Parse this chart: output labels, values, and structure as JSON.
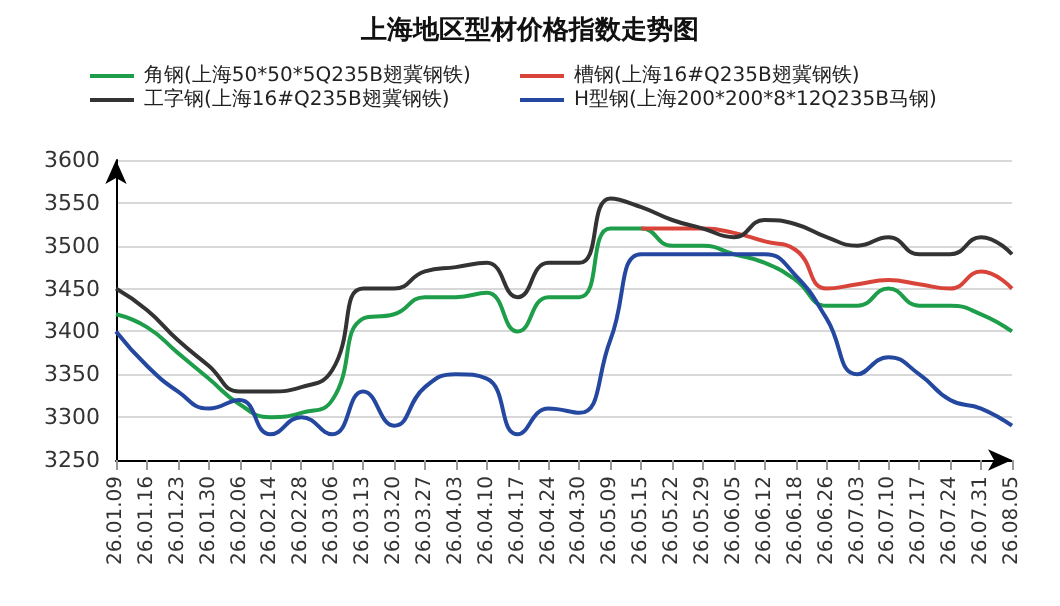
{
  "chart_data": {
    "type": "line",
    "title": "上海地区型材价格指数走势图",
    "categories": [
      "26.01.09",
      "26.01.16",
      "26.01.23",
      "26.01.30",
      "26.02.06",
      "26.02.14",
      "26.02.28",
      "26.03.06",
      "26.03.13",
      "26.03.20",
      "26.03.27",
      "26.04.03",
      "26.04.10",
      "26.04.17",
      "26.04.24",
      "26.04.30",
      "26.05.09",
      "26.05.15",
      "26.05.22",
      "26.05.29",
      "26.06.05",
      "26.06.12",
      "26.06.18",
      "26.06.26",
      "26.07.03",
      "26.07.10",
      "26.07.17",
      "26.07.24",
      "26.07.31",
      "26.08.05"
    ],
    "series": [
      {
        "name": "角钢(上海50*50*5Q235B翅冀钢铁)",
        "color": "#1e9e4a",
        "values": [
          3420,
          3405,
          3375,
          3345,
          3315,
          3300,
          3305,
          3320,
          3415,
          3420,
          3440,
          3440,
          3445,
          3400,
          3440,
          3440,
          3520,
          3520,
          3500,
          3500,
          3490,
          3480,
          3460,
          3430,
          3430,
          3450,
          3430,
          3430,
          3420,
          3400
        ]
      },
      {
        "name": "槽钢(上海16#Q235B翅冀钢铁)",
        "color": "#d9443a",
        "values": [
          null,
          null,
          null,
          null,
          null,
          null,
          null,
          null,
          null,
          null,
          null,
          null,
          null,
          null,
          null,
          null,
          null,
          3520,
          3520,
          3520,
          3515,
          3505,
          3495,
          3450,
          3455,
          3460,
          3455,
          3450,
          3470,
          3450
        ]
      },
      {
        "name": "工字钢(上海16#Q235B翅冀钢铁)",
        "color": "#333333",
        "values": [
          3450,
          3425,
          3390,
          3360,
          3330,
          3330,
          3335,
          3355,
          3450,
          3450,
          3470,
          3475,
          3480,
          3440,
          3480,
          3480,
          3555,
          3545,
          3530,
          3520,
          3510,
          3530,
          3525,
          3510,
          3500,
          3510,
          3490,
          3490,
          3510,
          3490
        ]
      },
      {
        "name": "H型钢(上海200*200*8*12Q235B马钢)",
        "color": "#2448a0",
        "values": [
          3400,
          3360,
          3330,
          3310,
          3320,
          3280,
          3300,
          3280,
          3330,
          3290,
          3335,
          3350,
          3345,
          3280,
          3310,
          3305,
          3390,
          3490,
          3490,
          3490,
          3490,
          3490,
          3465,
          3415,
          3350,
          3370,
          3350,
          3320,
          3310,
          3290
        ]
      }
    ],
    "ylim": [
      3250,
      3600
    ],
    "yticks": [
      3250,
      3300,
      3350,
      3400,
      3450,
      3500,
      3550,
      3600
    ],
    "grid": "y",
    "legend": "top",
    "marker": "none",
    "line_style": "solid"
  }
}
